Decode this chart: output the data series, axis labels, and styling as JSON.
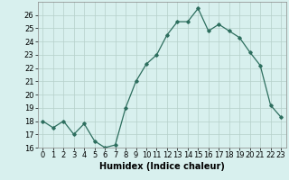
{
  "x": [
    0,
    1,
    2,
    3,
    4,
    5,
    6,
    7,
    8,
    9,
    10,
    11,
    12,
    13,
    14,
    15,
    16,
    17,
    18,
    19,
    20,
    21,
    22,
    23
  ],
  "y": [
    18.0,
    17.5,
    18.0,
    17.0,
    17.8,
    16.5,
    16.0,
    16.2,
    19.0,
    21.0,
    22.3,
    23.0,
    24.5,
    25.5,
    25.5,
    26.5,
    24.8,
    25.3,
    24.8,
    24.3,
    23.2,
    22.2,
    19.2,
    18.3
  ],
  "title": "",
  "xlabel": "Humidex (Indice chaleur)",
  "ylabel": "",
  "xlim": [
    -0.5,
    23.5
  ],
  "ylim": [
    16,
    27
  ],
  "yticks": [
    16,
    17,
    18,
    19,
    20,
    21,
    22,
    23,
    24,
    25,
    26
  ],
  "xticks": [
    0,
    1,
    2,
    3,
    4,
    5,
    6,
    7,
    8,
    9,
    10,
    11,
    12,
    13,
    14,
    15,
    16,
    17,
    18,
    19,
    20,
    21,
    22,
    23
  ],
  "line_color": "#2d6e5e",
  "marker": "D",
  "marker_size": 1.8,
  "line_width": 0.9,
  "bg_color": "#d8f0ee",
  "grid_color": "#b5d0ca",
  "xlabel_fontsize": 7,
  "tick_fontsize": 6
}
